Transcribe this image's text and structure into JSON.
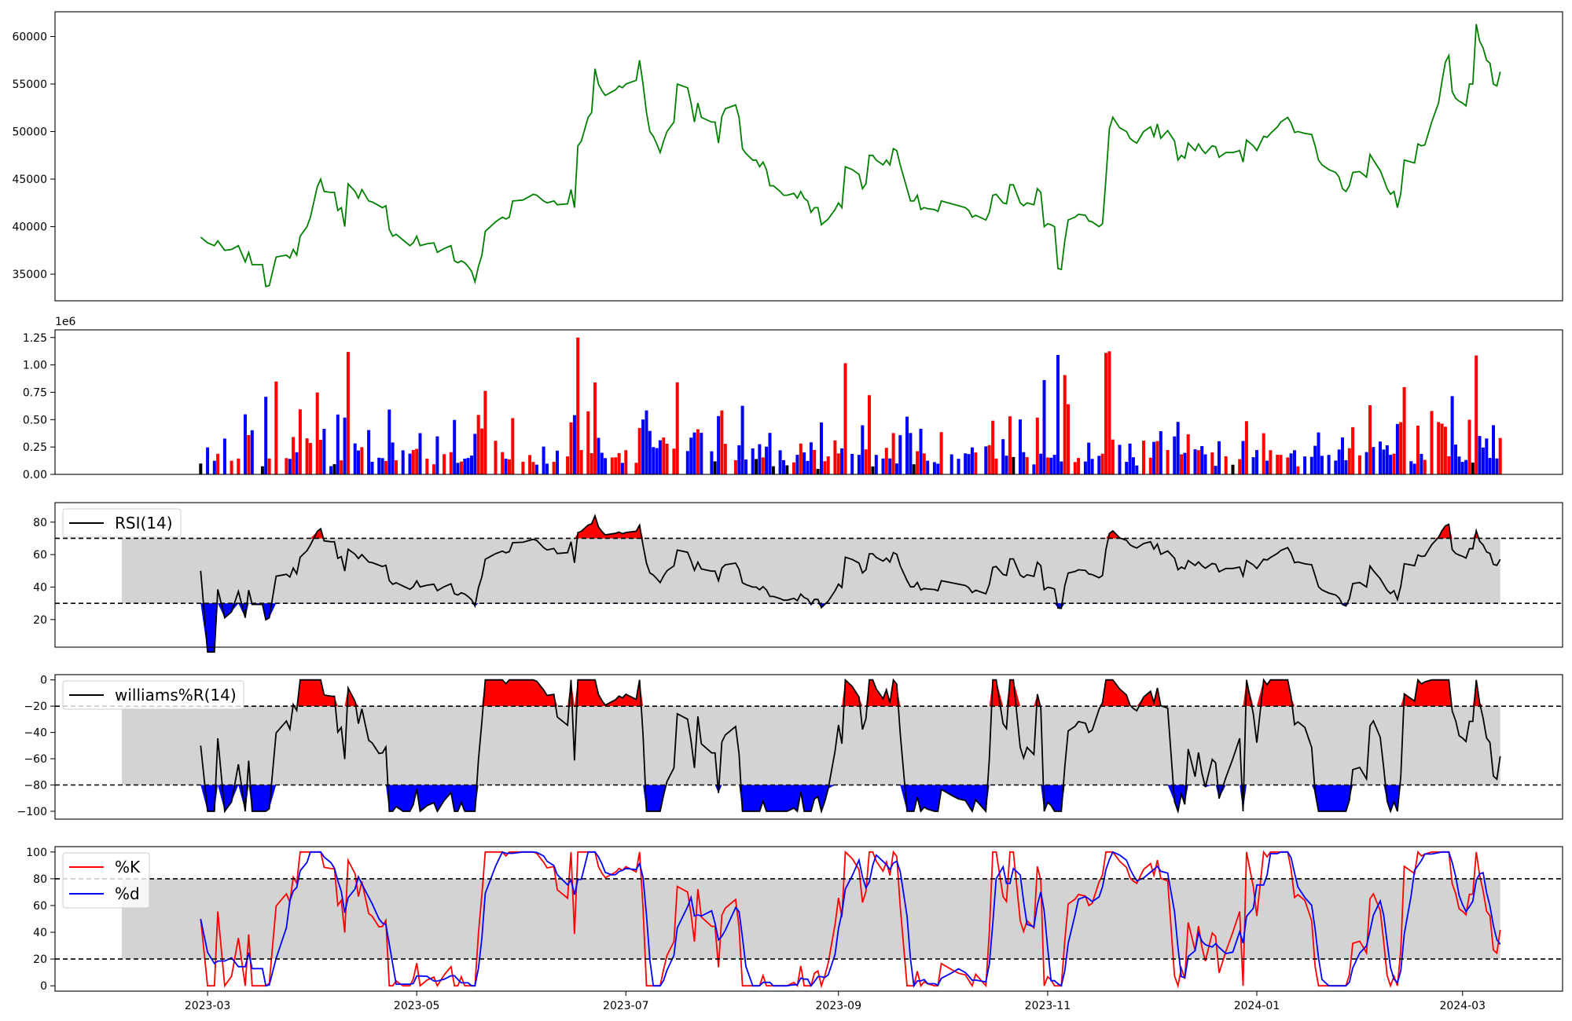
{
  "chart_data": [
    {
      "type": "line",
      "panel": "price",
      "series": [
        {
          "values_desc": "daily close",
          "color": "#008000"
        }
      ],
      "x_range": [
        "2023-02-04",
        "2024-03-10"
      ],
      "ylim": [
        32200,
        62600
      ],
      "yticks": [
        "35000",
        "40000",
        "45000",
        "50000",
        "55000",
        "60000"
      ],
      "points": [
        [
          "2023-02-27",
          38900
        ],
        [
          "2023-03-01",
          38300
        ],
        [
          "2023-03-03",
          38000
        ],
        [
          "2023-03-04",
          38500
        ],
        [
          "2023-03-06",
          37500
        ],
        [
          "2023-03-08",
          37600
        ],
        [
          "2023-03-10",
          38000
        ],
        [
          "2023-03-12",
          36300
        ],
        [
          "2023-03-13",
          37300
        ],
        [
          "2023-03-14",
          36000
        ],
        [
          "2023-03-17",
          36000
        ],
        [
          "2023-03-18",
          33700
        ],
        [
          "2023-03-19",
          33800
        ],
        [
          "2023-03-21",
          36800
        ],
        [
          "2023-03-24",
          37000
        ],
        [
          "2023-03-25",
          36700
        ],
        [
          "2023-03-26",
          37600
        ],
        [
          "2023-03-27",
          37000
        ],
        [
          "2023-03-28",
          39000
        ],
        [
          "2023-03-30",
          40000
        ],
        [
          "2023-03-31",
          41000
        ],
        [
          "2023-04-02",
          44200
        ],
        [
          "2023-04-03",
          45000
        ],
        [
          "2023-04-04",
          43700
        ],
        [
          "2023-04-06",
          43600
        ],
        [
          "2023-04-07",
          43600
        ],
        [
          "2023-04-08",
          41700
        ],
        [
          "2023-04-09",
          42000
        ],
        [
          "2023-04-10",
          40000
        ],
        [
          "2023-04-11",
          44500
        ],
        [
          "2023-04-13",
          43700
        ],
        [
          "2023-04-14",
          43000
        ],
        [
          "2023-04-15",
          43900
        ],
        [
          "2023-04-17",
          42700
        ],
        [
          "2023-04-18",
          42600
        ],
        [
          "2023-04-20",
          42200
        ],
        [
          "2023-04-21",
          42000
        ],
        [
          "2023-04-22",
          42200
        ],
        [
          "2023-04-23",
          39700
        ],
        [
          "2023-04-24",
          39000
        ],
        [
          "2023-04-25",
          39200
        ],
        [
          "2023-04-27",
          38600
        ],
        [
          "2023-04-29",
          38000
        ],
        [
          "2023-04-30",
          38300
        ],
        [
          "2023-05-01",
          39000
        ],
        [
          "2023-05-02",
          38000
        ],
        [
          "2023-05-04",
          38200
        ],
        [
          "2023-05-06",
          38300
        ],
        [
          "2023-05-07",
          37300
        ],
        [
          "2023-05-09",
          37700
        ],
        [
          "2023-05-11",
          38000
        ],
        [
          "2023-05-12",
          36400
        ],
        [
          "2023-05-13",
          36200
        ],
        [
          "2023-05-14",
          36400
        ],
        [
          "2023-05-15",
          36200
        ],
        [
          "2023-05-16",
          35800
        ],
        [
          "2023-05-17",
          35300
        ],
        [
          "2023-05-18",
          34200
        ],
        [
          "2023-05-19",
          35800
        ],
        [
          "2023-05-20",
          37000
        ],
        [
          "2023-05-21",
          39500
        ],
        [
          "2023-05-24",
          40500
        ],
        [
          "2023-05-26",
          41000
        ],
        [
          "2023-05-27",
          40800
        ],
        [
          "2023-05-28",
          41000
        ],
        [
          "2023-05-29",
          42700
        ],
        [
          "2023-06-01",
          42800
        ],
        [
          "2023-06-03",
          43200
        ],
        [
          "2023-06-04",
          43400
        ],
        [
          "2023-06-05",
          43300
        ],
        [
          "2023-06-07",
          42700
        ],
        [
          "2023-06-08",
          42500
        ],
        [
          "2023-06-10",
          42700
        ],
        [
          "2023-06-11",
          42300
        ],
        [
          "2023-06-14",
          42400
        ],
        [
          "2023-06-15",
          43900
        ],
        [
          "2023-06-16",
          42000
        ],
        [
          "2023-06-17",
          48500
        ],
        [
          "2023-06-18",
          49000
        ],
        [
          "2023-06-20",
          51500
        ],
        [
          "2023-06-21",
          52000
        ],
        [
          "2023-06-22",
          56600
        ],
        [
          "2023-06-23",
          55000
        ],
        [
          "2023-06-24",
          54300
        ],
        [
          "2023-06-25",
          53800
        ],
        [
          "2023-06-27",
          54200
        ],
        [
          "2023-06-28",
          54400
        ],
        [
          "2023-06-29",
          54800
        ],
        [
          "2023-06-30",
          54600
        ],
        [
          "2023-07-01",
          55000
        ],
        [
          "2023-07-04",
          55400
        ],
        [
          "2023-07-05",
          57500
        ],
        [
          "2023-07-06",
          55000
        ],
        [
          "2023-07-07",
          52000
        ],
        [
          "2023-07-08",
          50000
        ],
        [
          "2023-07-09",
          49500
        ],
        [
          "2023-07-10",
          48700
        ],
        [
          "2023-07-11",
          47800
        ],
        [
          "2023-07-12",
          49000
        ],
        [
          "2023-07-13",
          50000
        ],
        [
          "2023-07-15",
          51000
        ],
        [
          "2023-07-16",
          55000
        ],
        [
          "2023-07-19",
          54600
        ],
        [
          "2023-07-20",
          53000
        ],
        [
          "2023-07-21",
          51000
        ],
        [
          "2023-07-22",
          53000
        ],
        [
          "2023-07-23",
          51500
        ],
        [
          "2023-07-26",
          51000
        ],
        [
          "2023-07-27",
          51000
        ],
        [
          "2023-07-28",
          48800
        ],
        [
          "2023-07-29",
          51600
        ],
        [
          "2023-07-30",
          52400
        ],
        [
          "2023-08-02",
          52800
        ],
        [
          "2023-08-03",
          51500
        ],
        [
          "2023-08-04",
          48200
        ],
        [
          "2023-08-05",
          47700
        ],
        [
          "2023-08-07",
          47000
        ],
        [
          "2023-08-08",
          47000
        ],
        [
          "2023-08-09",
          46300
        ],
        [
          "2023-08-10",
          46800
        ],
        [
          "2023-08-11",
          46000
        ],
        [
          "2023-08-12",
          44300
        ],
        [
          "2023-08-13",
          44300
        ],
        [
          "2023-08-15",
          43700
        ],
        [
          "2023-08-16",
          43300
        ],
        [
          "2023-08-17",
          43300
        ],
        [
          "2023-08-19",
          43500
        ],
        [
          "2023-08-20",
          43000
        ],
        [
          "2023-08-21",
          43700
        ],
        [
          "2023-08-22",
          43000
        ],
        [
          "2023-08-23",
          42700
        ],
        [
          "2023-08-24",
          41500
        ],
        [
          "2023-08-25",
          42000
        ],
        [
          "2023-08-26",
          42000
        ],
        [
          "2023-08-27",
          40200
        ],
        [
          "2023-08-28",
          40500
        ],
        [
          "2023-08-29",
          40800
        ],
        [
          "2023-08-31",
          41800
        ],
        [
          "2023-09-01",
          42500
        ],
        [
          "2023-09-02",
          42000
        ],
        [
          "2023-09-03",
          46300
        ],
        [
          "2023-09-05",
          46000
        ],
        [
          "2023-09-07",
          45500
        ],
        [
          "2023-09-08",
          44000
        ],
        [
          "2023-09-09",
          44500
        ],
        [
          "2023-09-10",
          47500
        ],
        [
          "2023-09-11",
          47500
        ],
        [
          "2023-09-12",
          47000
        ],
        [
          "2023-09-14",
          46500
        ],
        [
          "2023-09-15",
          47000
        ],
        [
          "2023-09-16",
          46500
        ],
        [
          "2023-09-17",
          48200
        ],
        [
          "2023-09-18",
          48000
        ],
        [
          "2023-09-19",
          46500
        ],
        [
          "2023-09-21",
          44000
        ],
        [
          "2023-09-22",
          42700
        ],
        [
          "2023-09-23",
          42700
        ],
        [
          "2023-09-24",
          43300
        ],
        [
          "2023-09-25",
          41800
        ],
        [
          "2023-09-26",
          42000
        ],
        [
          "2023-09-27",
          41900
        ],
        [
          "2023-09-29",
          41800
        ],
        [
          "2023-09-30",
          41600
        ],
        [
          "2023-10-01",
          42700
        ],
        [
          "2023-10-04",
          42400
        ],
        [
          "2023-10-06",
          42200
        ],
        [
          "2023-10-08",
          42000
        ],
        [
          "2023-10-09",
          41700
        ],
        [
          "2023-10-10",
          41000
        ],
        [
          "2023-10-11",
          41200
        ],
        [
          "2023-10-14",
          40700
        ],
        [
          "2023-10-15",
          41500
        ],
        [
          "2023-10-16",
          43300
        ],
        [
          "2023-10-17",
          43400
        ],
        [
          "2023-10-19",
          42500
        ],
        [
          "2023-10-20",
          42400
        ],
        [
          "2023-10-21",
          44400
        ],
        [
          "2023-10-22",
          44400
        ],
        [
          "2023-10-24",
          42500
        ],
        [
          "2023-10-25",
          42200
        ],
        [
          "2023-10-26",
          42500
        ],
        [
          "2023-10-28",
          42300
        ],
        [
          "2023-10-29",
          44000
        ],
        [
          "2023-10-30",
          43600
        ],
        [
          "2023-10-31",
          40000
        ],
        [
          "2023-11-01",
          40300
        ],
        [
          "2023-11-02",
          40200
        ],
        [
          "2023-11-03",
          40000
        ],
        [
          "2023-11-04",
          35600
        ],
        [
          "2023-11-05",
          35500
        ],
        [
          "2023-11-06",
          38500
        ],
        [
          "2023-11-07",
          40700
        ],
        [
          "2023-11-09",
          41000
        ],
        [
          "2023-11-10",
          41300
        ],
        [
          "2023-11-12",
          41200
        ],
        [
          "2023-11-13",
          40600
        ],
        [
          "2023-11-14",
          40500
        ],
        [
          "2023-11-16",
          40000
        ],
        [
          "2023-11-17",
          40300
        ],
        [
          "2023-11-18",
          45000
        ],
        [
          "2023-11-19",
          50300
        ],
        [
          "2023-11-20",
          51500
        ],
        [
          "2023-11-22",
          50400
        ],
        [
          "2023-11-24",
          50000
        ],
        [
          "2023-11-25",
          49300
        ],
        [
          "2023-11-26",
          49000
        ],
        [
          "2023-11-27",
          48800
        ],
        [
          "2023-11-29",
          50000
        ],
        [
          "2023-12-01",
          50500
        ],
        [
          "2023-12-02",
          49500
        ],
        [
          "2023-12-03",
          50800
        ],
        [
          "2023-12-04",
          49300
        ],
        [
          "2023-12-06",
          50100
        ],
        [
          "2023-12-08",
          49000
        ],
        [
          "2023-12-09",
          47000
        ],
        [
          "2023-12-10",
          47500
        ],
        [
          "2023-12-11",
          47200
        ],
        [
          "2023-12-12",
          48800
        ],
        [
          "2023-12-14",
          48000
        ],
        [
          "2023-12-15",
          48700
        ],
        [
          "2023-12-16",
          48100
        ],
        [
          "2023-12-17",
          47700
        ],
        [
          "2023-12-19",
          48500
        ],
        [
          "2023-12-20",
          48400
        ],
        [
          "2023-12-21",
          47300
        ],
        [
          "2023-12-23",
          47800
        ],
        [
          "2023-12-25",
          47800
        ],
        [
          "2023-12-27",
          48000
        ],
        [
          "2023-12-28",
          46800
        ],
        [
          "2023-12-29",
          49100
        ],
        [
          "2023-12-31",
          48500
        ],
        [
          "2024-01-01",
          48000
        ],
        [
          "2024-01-03",
          49500
        ],
        [
          "2024-01-04",
          49400
        ],
        [
          "2024-01-05",
          49800
        ],
        [
          "2024-01-07",
          50500
        ],
        [
          "2024-01-08",
          51000
        ],
        [
          "2024-01-10",
          51500
        ],
        [
          "2024-01-11",
          50900
        ],
        [
          "2024-01-12",
          49900
        ],
        [
          "2024-01-13",
          50000
        ],
        [
          "2024-01-15",
          49800
        ],
        [
          "2024-01-17",
          49700
        ],
        [
          "2024-01-18",
          48500
        ],
        [
          "2024-01-19",
          47000
        ],
        [
          "2024-01-20",
          46500
        ],
        [
          "2024-01-22",
          46000
        ],
        [
          "2024-01-24",
          45700
        ],
        [
          "2024-01-25",
          45200
        ],
        [
          "2024-01-26",
          44000
        ],
        [
          "2024-01-27",
          43700
        ],
        [
          "2024-01-28",
          44300
        ],
        [
          "2024-01-29",
          45700
        ],
        [
          "2024-01-31",
          45800
        ],
        [
          "2024-02-02",
          45200
        ],
        [
          "2024-02-03",
          47600
        ],
        [
          "2024-02-04",
          47000
        ],
        [
          "2024-02-06",
          45900
        ],
        [
          "2024-02-07",
          45000
        ],
        [
          "2024-02-08",
          44000
        ],
        [
          "2024-02-09",
          43400
        ],
        [
          "2024-02-10",
          43700
        ],
        [
          "2024-02-11",
          42000
        ],
        [
          "2024-02-12",
          43500
        ],
        [
          "2024-02-13",
          47000
        ],
        [
          "2024-02-15",
          46800
        ],
        [
          "2024-02-16",
          46700
        ],
        [
          "2024-02-17",
          48700
        ],
        [
          "2024-02-18",
          48500
        ],
        [
          "2024-02-19",
          48600
        ],
        [
          "2024-02-21",
          51000
        ],
        [
          "2024-02-23",
          53000
        ],
        [
          "2024-02-24",
          55300
        ],
        [
          "2024-02-25",
          57300
        ],
        [
          "2024-02-26",
          58000
        ],
        [
          "2024-02-27",
          54200
        ],
        [
          "2024-02-28",
          53500
        ],
        [
          "2024-02-29",
          53200
        ],
        [
          "2024-03-01",
          53000
        ],
        [
          "2024-03-02",
          52700
        ],
        [
          "2024-03-03",
          55000
        ],
        [
          "2024-03-04",
          55000
        ],
        [
          "2024-03-05",
          61300
        ],
        [
          "2024-03-06",
          59500
        ],
        [
          "2024-03-07",
          58800
        ],
        [
          "2024-03-08",
          57500
        ],
        [
          "2024-03-09",
          57200
        ],
        [
          "2024-03-10",
          55000
        ],
        [
          "2024-03-11",
          54800
        ],
        [
          "2024-03-12",
          56300
        ]
      ]
    },
    {
      "type": "bar",
      "panel": "volume",
      "offset_label": "1e6",
      "ylim": [
        0,
        1.32
      ],
      "yticks": [
        "0.00",
        "0.25",
        "0.50",
        "0.75",
        "1.00",
        "1.25"
      ],
      "bar_color_by_kind": {
        "up": "#ff0000",
        "down": "#0000ff",
        "flat": "#000000"
      }
    },
    {
      "type": "area",
      "panel": "rsi",
      "legend": [
        "RSI(14)"
      ],
      "ylim": [
        3,
        92
      ],
      "yticks": [
        "20",
        "40",
        "60",
        "80"
      ],
      "thresholds": [
        30,
        70
      ],
      "fill_colors": {
        "band": "#d3d3d3",
        "over": "#ff0000",
        "under": "#0000ff"
      }
    },
    {
      "type": "area",
      "panel": "williams",
      "legend": [
        "williams%R(14)"
      ],
      "ylim": [
        -106,
        4
      ],
      "yticks": [
        "0",
        "−20",
        "−40",
        "−60",
        "−80",
        "−100"
      ],
      "thresholds": [
        -80,
        -20
      ]
    },
    {
      "type": "line",
      "panel": "stochastic",
      "legend": [
        "%K",
        "%d"
      ],
      "series_colors": {
        "%K": "#ff0000",
        "%d": "#0000ff"
      },
      "ylim": [
        -4,
        104
      ],
      "yticks": [
        "0",
        "20",
        "40",
        "60",
        "80",
        "100"
      ],
      "thresholds": [
        20,
        80
      ],
      "xticks": [
        "2023-03",
        "2023-05",
        "2023-07",
        "2023-09",
        "2023-11",
        "2024-01",
        "2024-03"
      ]
    }
  ]
}
